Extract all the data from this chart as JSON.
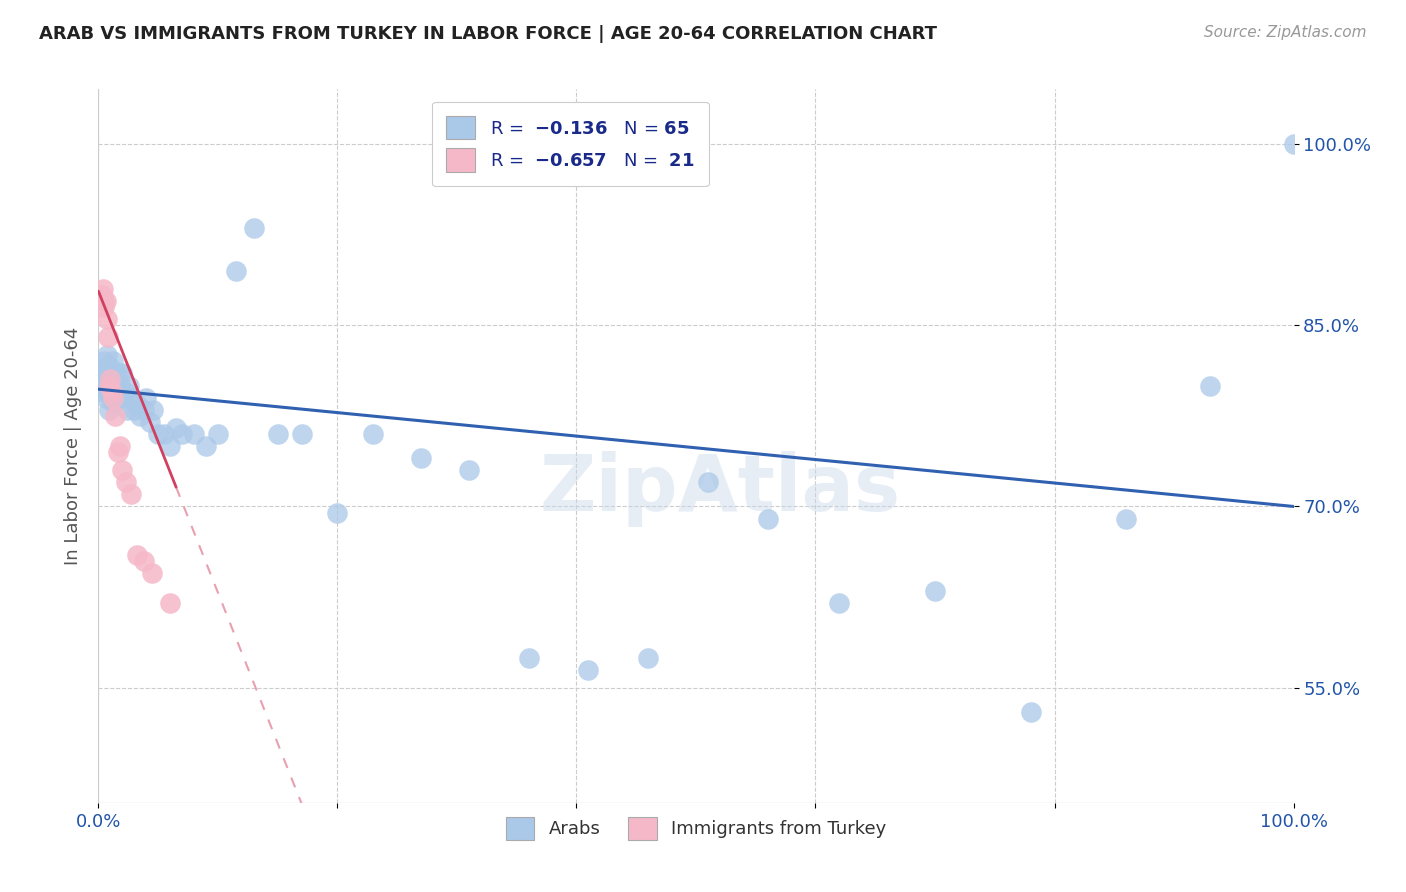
{
  "title": "ARAB VS IMMIGRANTS FROM TURKEY IN LABOR FORCE | AGE 20-64 CORRELATION CHART",
  "source": "Source: ZipAtlas.com",
  "ylabel": "In Labor Force | Age 20-64",
  "xlim": [
    0.0,
    1.0
  ],
  "ylim": [
    0.455,
    1.045
  ],
  "ytick_positions": [
    0.55,
    0.7,
    0.85,
    1.0
  ],
  "ytick_labels": [
    "55.0%",
    "70.0%",
    "85.0%",
    "100.0%"
  ],
  "arab_color": "#aac8e8",
  "turkey_color": "#f5b8c8",
  "arab_line_color": "#3060b0",
  "turkey_solid_color": "#d04060",
  "turkey_dash_color": "#e8a0b0",
  "legend_arab_n": "65",
  "legend_turkey_n": "21",
  "watermark": "ZipAtlas",
  "arab_x": [
    0.002,
    0.003,
    0.004,
    0.005,
    0.005,
    0.006,
    0.006,
    0.007,
    0.007,
    0.008,
    0.008,
    0.009,
    0.009,
    0.01,
    0.01,
    0.011,
    0.011,
    0.012,
    0.012,
    0.013,
    0.014,
    0.015,
    0.016,
    0.017,
    0.018,
    0.019,
    0.02,
    0.022,
    0.024,
    0.026,
    0.028,
    0.03,
    0.032,
    0.035,
    0.038,
    0.04,
    0.043,
    0.046,
    0.05,
    0.055,
    0.06,
    0.065,
    0.07,
    0.08,
    0.09,
    0.1,
    0.115,
    0.13,
    0.15,
    0.17,
    0.2,
    0.23,
    0.27,
    0.31,
    0.36,
    0.41,
    0.46,
    0.51,
    0.56,
    0.62,
    0.7,
    0.78,
    0.86,
    0.93,
    1.0
  ],
  "arab_y": [
    0.8,
    0.81,
    0.795,
    0.82,
    0.805,
    0.815,
    0.79,
    0.8,
    0.825,
    0.81,
    0.795,
    0.805,
    0.78,
    0.815,
    0.8,
    0.81,
    0.79,
    0.8,
    0.82,
    0.785,
    0.8,
    0.81,
    0.795,
    0.81,
    0.8,
    0.79,
    0.81,
    0.795,
    0.78,
    0.8,
    0.79,
    0.78,
    0.785,
    0.775,
    0.78,
    0.79,
    0.77,
    0.78,
    0.76,
    0.76,
    0.75,
    0.765,
    0.76,
    0.76,
    0.75,
    0.76,
    0.895,
    0.93,
    0.76,
    0.76,
    0.695,
    0.76,
    0.74,
    0.73,
    0.575,
    0.565,
    0.575,
    0.72,
    0.69,
    0.62,
    0.63,
    0.53,
    0.69,
    0.8,
    1.0
  ],
  "turkey_x": [
    0.003,
    0.004,
    0.005,
    0.005,
    0.006,
    0.007,
    0.008,
    0.009,
    0.01,
    0.011,
    0.012,
    0.014,
    0.016,
    0.018,
    0.02,
    0.023,
    0.027,
    0.032,
    0.038,
    0.045,
    0.06
  ],
  "turkey_y": [
    0.875,
    0.88,
    0.87,
    0.865,
    0.87,
    0.855,
    0.84,
    0.8,
    0.805,
    0.795,
    0.79,
    0.775,
    0.745,
    0.75,
    0.73,
    0.72,
    0.71,
    0.66,
    0.655,
    0.645,
    0.62
  ]
}
